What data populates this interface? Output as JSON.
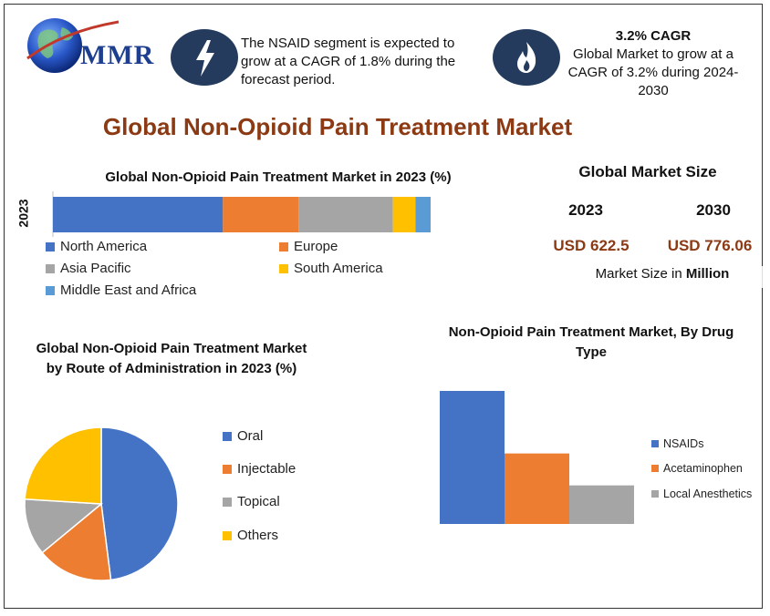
{
  "brand": {
    "logo_text": "MMR"
  },
  "highlights": [
    {
      "icon": "lightning-bolt-icon",
      "title": "",
      "text": "The NSAID segment is expected to grow at a CAGR of 1.8% during the forecast period."
    },
    {
      "icon": "flame-icon",
      "title": "3.2% CAGR",
      "text": "Global Market to grow at a CAGR of 3.2% during 2024-2030"
    }
  ],
  "main_title": "Global Non-Opioid Pain Treatment Market",
  "market_size": {
    "title": "Global Market Size",
    "year_2023": "2023",
    "year_2030": "2030",
    "value_2023": "USD 622.5",
    "value_2030": "USD 776.06",
    "note_prefix": "Market Size in ",
    "note_unit": "Million"
  },
  "colors": {
    "blue": "#4472C4",
    "orange": "#ED7D31",
    "gray": "#A5A5A5",
    "yellow": "#FFC000",
    "lightblue": "#5B9BD5",
    "title_brown": "#8B3A14",
    "icon_navy": "#243B5E"
  },
  "chart_data": [
    {
      "type": "bar",
      "orientation": "horizontal-stacked",
      "title": "Global Non-Opioid Pain Treatment Market in 2023 (%)",
      "categories": [
        "2023"
      ],
      "series": [
        {
          "name": "North America",
          "values": [
            45
          ],
          "color": "#4472C4"
        },
        {
          "name": "Europe",
          "values": [
            20
          ],
          "color": "#ED7D31"
        },
        {
          "name": "Asia Pacific",
          "values": [
            25
          ],
          "color": "#A5A5A5"
        },
        {
          "name": "South America",
          "values": [
            6
          ],
          "color": "#FFC000"
        },
        {
          "name": "Middle East and Africa",
          "values": [
            4
          ],
          "color": "#5B9BD5"
        }
      ],
      "legend_position": "bottom"
    },
    {
      "type": "pie",
      "title": "Global Non-Opioid Pain Treatment Market by Route of Administration in 2023 (%)",
      "slices": [
        {
          "name": "Oral",
          "value": 48,
          "color": "#4472C4"
        },
        {
          "name": "Injectable",
          "value": 16,
          "color": "#ED7D31"
        },
        {
          "name": "Topical",
          "value": 12,
          "color": "#A5A5A5"
        },
        {
          "name": "Others",
          "value": 24,
          "color": "#FFC000"
        }
      ],
      "legend_position": "right"
    },
    {
      "type": "bar",
      "title": "Non-Opioid Pain Treatment Market, By Drug Type",
      "categories": [
        ""
      ],
      "series": [
        {
          "name": "NSAIDs",
          "values": [
            100
          ],
          "color": "#4472C4"
        },
        {
          "name": "Acetaminophen",
          "values": [
            53
          ],
          "color": "#ED7D31"
        },
        {
          "name": "Local Anesthetics",
          "values": [
            29
          ],
          "color": "#A5A5A5"
        }
      ],
      "ylim": [
        0,
        100
      ],
      "legend_position": "right"
    }
  ]
}
